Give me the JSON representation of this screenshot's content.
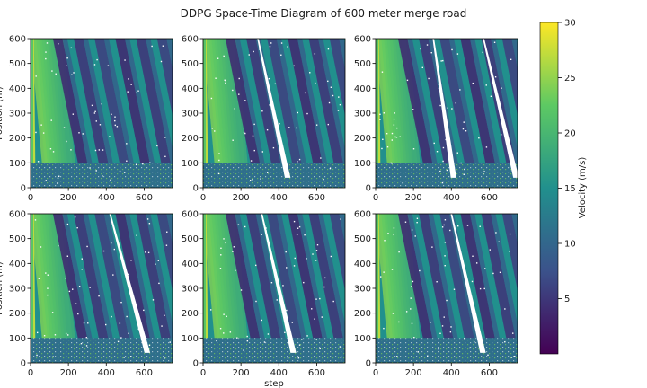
{
  "chart_data": {
    "type": "heatmap",
    "title": "DDPG Space-Time Diagram of 600 meter merge road",
    "xlabel": "step",
    "ylabel": "Position (m)",
    "xlim": [
      0,
      750
    ],
    "ylim": [
      0,
      600
    ],
    "xticks": [
      0,
      200,
      400,
      600
    ],
    "yticks": [
      0,
      100,
      200,
      300,
      400,
      500,
      600
    ],
    "colorbar": {
      "label": "Velocity (m/s)",
      "range": [
        0,
        30
      ],
      "ticks": [
        5,
        10,
        15,
        20,
        25,
        30
      ],
      "colormap": [
        "#440154",
        "#3b528b",
        "#21908d",
        "#5dc963",
        "#fde725"
      ]
    },
    "panels": [
      {
        "wedge": null
      },
      {
        "wedge": {
          "top": [
            290,
            600
          ],
          "bottom": [
            440,
            40
          ]
        }
      },
      {
        "wedge": {
          "top": [
            305,
            600
          ],
          "bottom": [
            405,
            40
          ],
          "top2": [
            570,
            600
          ],
          "bottom2": [
            735,
            40
          ]
        }
      },
      {
        "wedge": {
          "top": [
            420,
            600
          ],
          "bottom": [
            610,
            40
          ]
        }
      },
      {
        "wedge": {
          "top": [
            310,
            600
          ],
          "bottom": [
            470,
            40
          ]
        }
      },
      {
        "wedge": {
          "top": [
            400,
            600
          ],
          "bottom": [
            560,
            40
          ]
        }
      }
    ],
    "merge_zone": {
      "y_range": [
        0,
        100
      ]
    },
    "free_flow_band": {
      "x_range": [
        0,
        150
      ],
      "velocity": 24
    },
    "congestion_waves": {
      "slope": -3.8,
      "spacing": 110,
      "low_velocity": 4
    }
  }
}
